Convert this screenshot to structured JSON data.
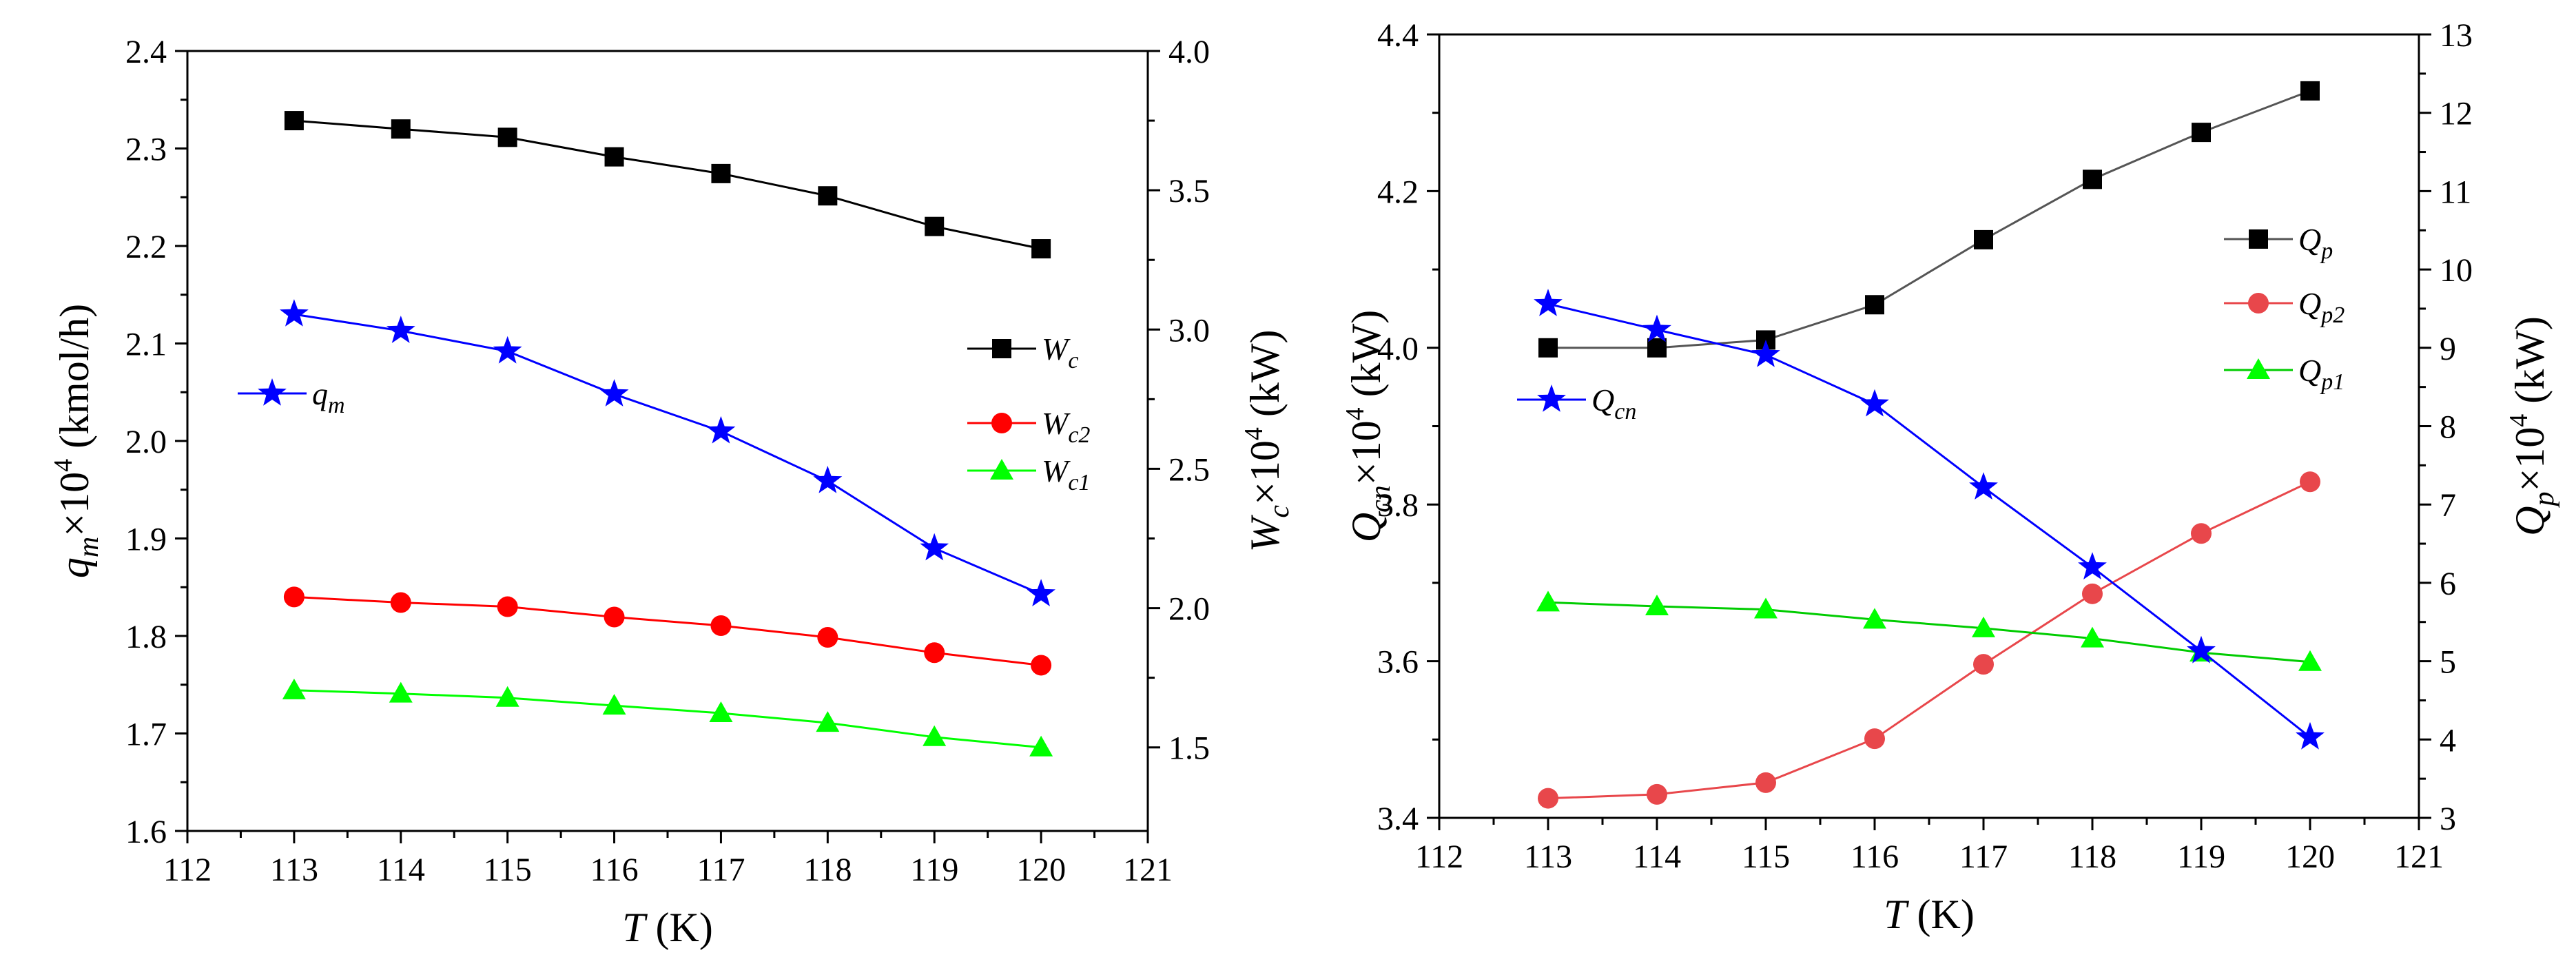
{
  "charts": [
    {
      "type": "line",
      "x": [
        113,
        114,
        115,
        116,
        117,
        118,
        119,
        120
      ],
      "xlim": [
        112,
        121
      ],
      "xticks": [
        "112",
        "113",
        "114",
        "115",
        "116",
        "117",
        "118",
        "119",
        "120",
        "121"
      ],
      "xlabel_var": "T",
      "xlabel_unit": " (K)",
      "left_axis": {
        "ylim": [
          1.6,
          2.4
        ],
        "ticks": [
          "1.6",
          "1.7",
          "1.8",
          "1.9",
          "2.0",
          "2.1",
          "2.2",
          "2.3",
          "2.4"
        ],
        "label_var": "q",
        "label_sub": "m",
        "label_rest": "×10",
        "label_exp": "4",
        "label_unit": " (kmol/h)"
      },
      "right_axis": {
        "ylim": [
          1.2,
          4.0
        ],
        "ticks": [
          "1.5",
          "2.0",
          "2.5",
          "3.0",
          "3.5",
          "4.0"
        ],
        "label_var": "W",
        "label_sub": "c",
        "label_rest": "×10",
        "label_exp": "4",
        "label_unit": " (kW)"
      },
      "series": [
        {
          "name": "W",
          "sub": "c",
          "axis": "right",
          "marker": "square",
          "color": "#000000",
          "values": [
            3.75,
            3.72,
            3.69,
            3.62,
            3.56,
            3.48,
            3.37,
            3.29
          ]
        },
        {
          "name": "q",
          "sub": "m",
          "axis": "left",
          "marker": "star",
          "color": "#0000ff",
          "values": [
            2.13,
            2.113,
            2.092,
            2.048,
            2.01,
            1.959,
            1.89,
            1.843
          ]
        },
        {
          "name": "W",
          "sub": "c2",
          "axis": "right",
          "marker": "circle",
          "color": "#ff0000",
          "values": [
            2.04,
            2.02,
            2.005,
            1.968,
            1.937,
            1.895,
            1.84,
            1.795
          ]
        },
        {
          "name": "W",
          "sub": "c1",
          "axis": "right",
          "marker": "triangle",
          "color": "#00ff00",
          "values": [
            1.705,
            1.693,
            1.678,
            1.65,
            1.623,
            1.588,
            1.537,
            1.5
          ]
        }
      ]
    },
    {
      "type": "line",
      "x": [
        113,
        114,
        115,
        116,
        117,
        118,
        119,
        120
      ],
      "xlim": [
        112,
        121
      ],
      "xticks": [
        "112",
        "113",
        "114",
        "115",
        "116",
        "117",
        "118",
        "119",
        "120",
        "121"
      ],
      "xlabel_var": "T",
      "xlabel_unit": " (K)",
      "left_axis": {
        "ylim": [
          3.4,
          4.4
        ],
        "ticks": [
          "3.4",
          "3.6",
          "3.8",
          "4.0",
          "4.2",
          "4.4"
        ],
        "label_var": "Q",
        "label_sub": "cn",
        "label_rest": "×10",
        "label_exp": "4",
        "label_unit": " (kW)"
      },
      "right_axis": {
        "ylim": [
          3,
          13
        ],
        "ticks": [
          "3",
          "4",
          "5",
          "6",
          "7",
          "8",
          "9",
          "10",
          "11",
          "12",
          "13"
        ],
        "label_var": "Q",
        "label_sub": "p",
        "label_rest": "×10",
        "label_exp": "4",
        "label_unit": " (kW)"
      },
      "series": [
        {
          "name": "Q",
          "sub": "p",
          "axis": "right",
          "marker": "square",
          "color": "#000000",
          "line": "#555555",
          "values": [
            9.0,
            9.0,
            9.1,
            9.55,
            10.38,
            11.15,
            11.75,
            12.28
          ]
        },
        {
          "name": "Q",
          "sub": "p2",
          "axis": "right",
          "marker": "circle",
          "color": "#e8474b",
          "line": "#e8474b",
          "values": [
            3.25,
            3.3,
            3.45,
            4.01,
            4.96,
            5.86,
            6.63,
            7.29
          ]
        },
        {
          "name": "Q",
          "sub": "p1",
          "axis": "right",
          "marker": "triangle",
          "color": "#00ff00",
          "line": "#00cc00",
          "values": [
            5.75,
            5.7,
            5.66,
            5.53,
            5.42,
            5.29,
            5.11,
            4.99
          ]
        },
        {
          "name": "Q",
          "sub": "cn",
          "axis": "left",
          "marker": "star",
          "color": "#0000ff",
          "line": "#0000ff",
          "values": [
            4.056,
            4.023,
            3.991,
            3.928,
            3.822,
            3.72,
            3.613,
            3.503
          ]
        }
      ]
    }
  ]
}
